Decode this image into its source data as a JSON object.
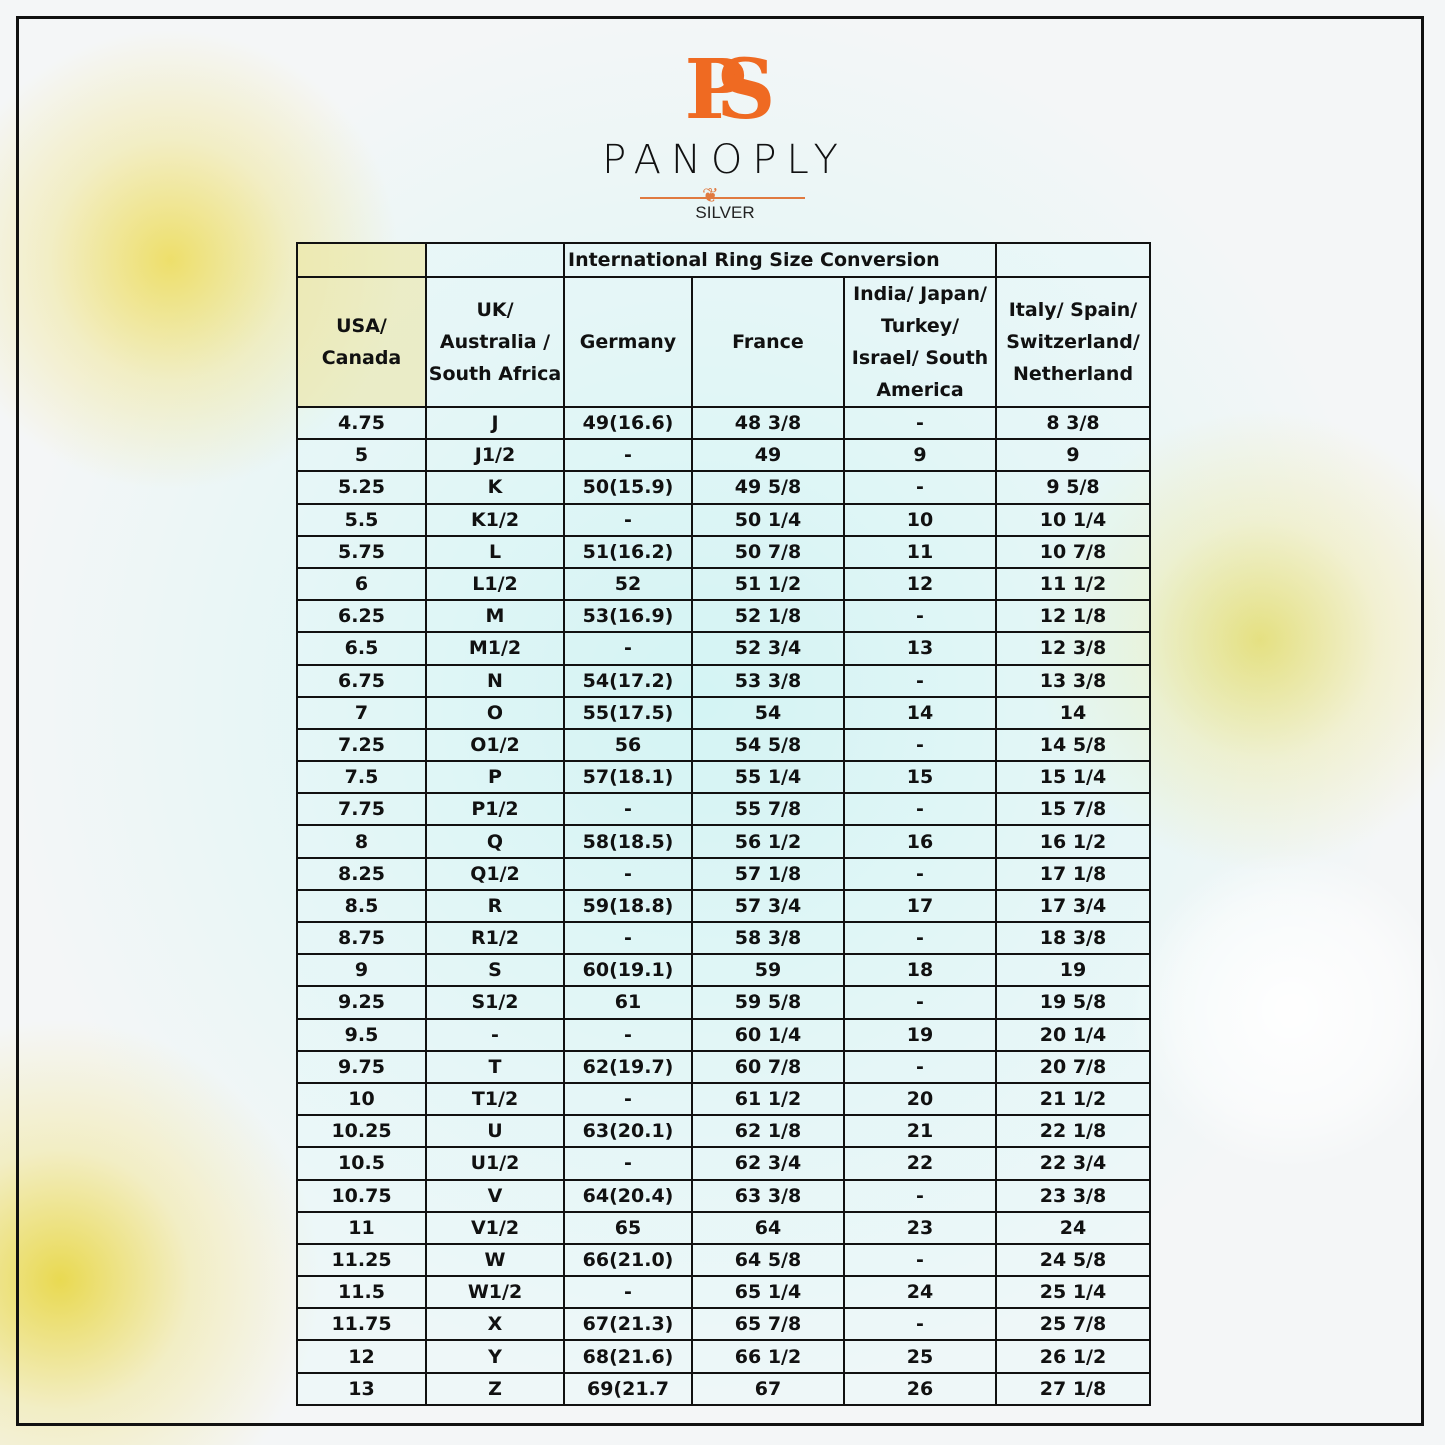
{
  "logo": {
    "monogram": "PS",
    "brand": "PANOPLY",
    "sub": "SILVER",
    "accent": "#ef6a22"
  },
  "table": {
    "title": "International Ring Size Conversion",
    "headers": [
      "USA/ Canada",
      "UK/ Australia / South Africa",
      "Germany",
      "France",
      "India/ Japan/ Turkey/ Israel/ South America",
      "Italy/ Spain/ Switzerland/ Netherland"
    ],
    "rows": [
      [
        "4.75",
        "J",
        "49(16.6)",
        "48 3/8",
        "-",
        "8 3/8"
      ],
      [
        "5",
        "J1/2",
        "-",
        "49",
        "9",
        "9"
      ],
      [
        "5.25",
        "K",
        "50(15.9)",
        "49 5/8",
        "-",
        "9 5/8"
      ],
      [
        "5.5",
        "K1/2",
        "-",
        "50 1/4",
        "10",
        "10 1/4"
      ],
      [
        "5.75",
        "L",
        "51(16.2)",
        "50 7/8",
        "11",
        "10 7/8"
      ],
      [
        "6",
        "L1/2",
        "52",
        "51 1/2",
        "12",
        "11 1/2"
      ],
      [
        "6.25",
        "M",
        "53(16.9)",
        "52 1/8",
        "-",
        "12 1/8"
      ],
      [
        "6.5",
        "M1/2",
        "-",
        "52 3/4",
        "13",
        "12 3/8"
      ],
      [
        "6.75",
        "N",
        "54(17.2)",
        "53 3/8",
        "-",
        "13 3/8"
      ],
      [
        "7",
        "O",
        "55(17.5)",
        "54",
        "14",
        "14"
      ],
      [
        "7.25",
        "O1/2",
        "56",
        "54 5/8",
        "-",
        "14 5/8"
      ],
      [
        "7.5",
        "P",
        "57(18.1)",
        "55 1/4",
        "15",
        "15 1/4"
      ],
      [
        "7.75",
        "P1/2",
        "-",
        "55 7/8",
        "-",
        "15 7/8"
      ],
      [
        "8",
        "Q",
        "58(18.5)",
        "56 1/2",
        "16",
        "16 1/2"
      ],
      [
        "8.25",
        "Q1/2",
        "-",
        "57 1/8",
        "-",
        "17 1/8"
      ],
      [
        "8.5",
        "R",
        "59(18.8)",
        "57 3/4",
        "17",
        "17 3/4"
      ],
      [
        "8.75",
        "R1/2",
        "-",
        "58 3/8",
        "-",
        "18 3/8"
      ],
      [
        "9",
        "S",
        "60(19.1)",
        "59",
        "18",
        "19"
      ],
      [
        "9.25",
        "S1/2",
        "61",
        "59 5/8",
        "-",
        "19 5/8"
      ],
      [
        "9.5",
        "-",
        "-",
        "60 1/4",
        "19",
        "20 1/4"
      ],
      [
        "9.75",
        "T",
        "62(19.7)",
        "60 7/8",
        "-",
        "20 7/8"
      ],
      [
        "10",
        "T1/2",
        "-",
        "61 1/2",
        "20",
        "21 1/2"
      ],
      [
        "10.25",
        "U",
        "63(20.1)",
        "62 1/8",
        "21",
        "22 1/8"
      ],
      [
        "10.5",
        "U1/2",
        "-",
        "62 3/4",
        "22",
        "22 3/4"
      ],
      [
        "10.75",
        "V",
        "64(20.4)",
        "63 3/8",
        "-",
        "23 3/8"
      ],
      [
        "11",
        "V1/2",
        "65",
        "64",
        "23",
        "24"
      ],
      [
        "11.25",
        "W",
        "66(21.0)",
        "64 5/8",
        "-",
        "24 5/8"
      ],
      [
        "11.5",
        "W1/2",
        "-",
        "65 1/4",
        "24",
        "25 1/4"
      ],
      [
        "11.75",
        "X",
        "67(21.3)",
        "65 7/8",
        "-",
        "25 7/8"
      ],
      [
        "12",
        "Y",
        "68(21.6)",
        "66 1/2",
        "25",
        "26 1/2"
      ],
      [
        "13",
        "Z",
        "69(21.7",
        "67",
        "26",
        "27 1/8"
      ]
    ]
  }
}
